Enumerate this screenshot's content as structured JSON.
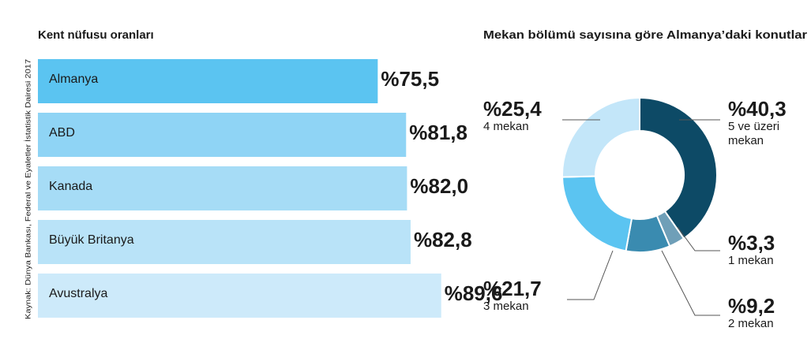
{
  "source": "Kaynak: Dünya Bankası, Federal ve Eyaletler İstatistik Dairesi 2017",
  "chart_data": [
    {
      "type": "bar",
      "orientation": "horizontal",
      "title": "Kent nüfusu oranları",
      "categories": [
        "Almanya",
        "ABD",
        "Kanada",
        "Büyük Britanya",
        "Avustralya"
      ],
      "values": [
        75.5,
        81.8,
        82.0,
        82.8,
        89.6
      ],
      "value_labels": [
        "%75,5",
        "%81,8",
        "%82,0",
        "%82,8",
        "%89,6"
      ],
      "colors": [
        "#5bc4f1",
        "#8fd4f5",
        "#a6dcf6",
        "#b9e3f8",
        "#cdeafa"
      ]
    },
    {
      "type": "pie",
      "donut": true,
      "title": "Mekan bölümü sayısına göre Almanya’daki konutlar",
      "categories": [
        "5 ve üzeri mekan",
        "1 mekan",
        "2 mekan",
        "3 mekan",
        "4 mekan"
      ],
      "values": [
        40.3,
        3.3,
        9.2,
        21.7,
        25.4
      ],
      "value_labels": [
        "%40,3",
        "%3,3",
        "%9,2",
        "%21,7",
        "%25,4"
      ],
      "colors": [
        "#0d4a66",
        "#6f9fb8",
        "#3a8bb0",
        "#5bc4f1",
        "#c3e6f9"
      ]
    }
  ]
}
